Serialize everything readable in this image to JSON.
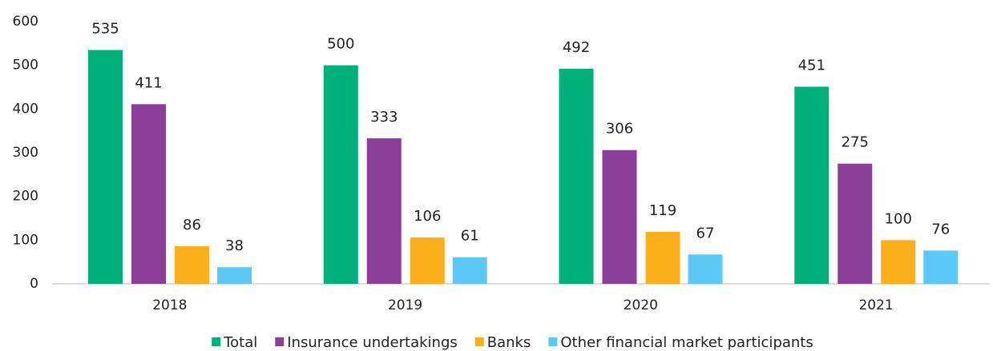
{
  "chart_data": {
    "type": "bar",
    "categories": [
      "2018",
      "2019",
      "2020",
      "2021"
    ],
    "series": [
      {
        "name": "Total",
        "color": "#00b07a",
        "values": [
          535,
          500,
          492,
          451
        ]
      },
      {
        "name": "Insurance undertakings",
        "color": "#8b3f98",
        "values": [
          411,
          333,
          306,
          275
        ]
      },
      {
        "name": "Banks",
        "color": "#fbb01b",
        "values": [
          86,
          106,
          119,
          100
        ]
      },
      {
        "name": "Other financial market participants",
        "color": "#5bc8f5",
        "values": [
          38,
          61,
          67,
          76
        ]
      }
    ],
    "ylim": [
      0,
      600
    ],
    "yticks": [
      0,
      100,
      200,
      300,
      400,
      500,
      600
    ],
    "grid": false,
    "legend": "bottom"
  }
}
